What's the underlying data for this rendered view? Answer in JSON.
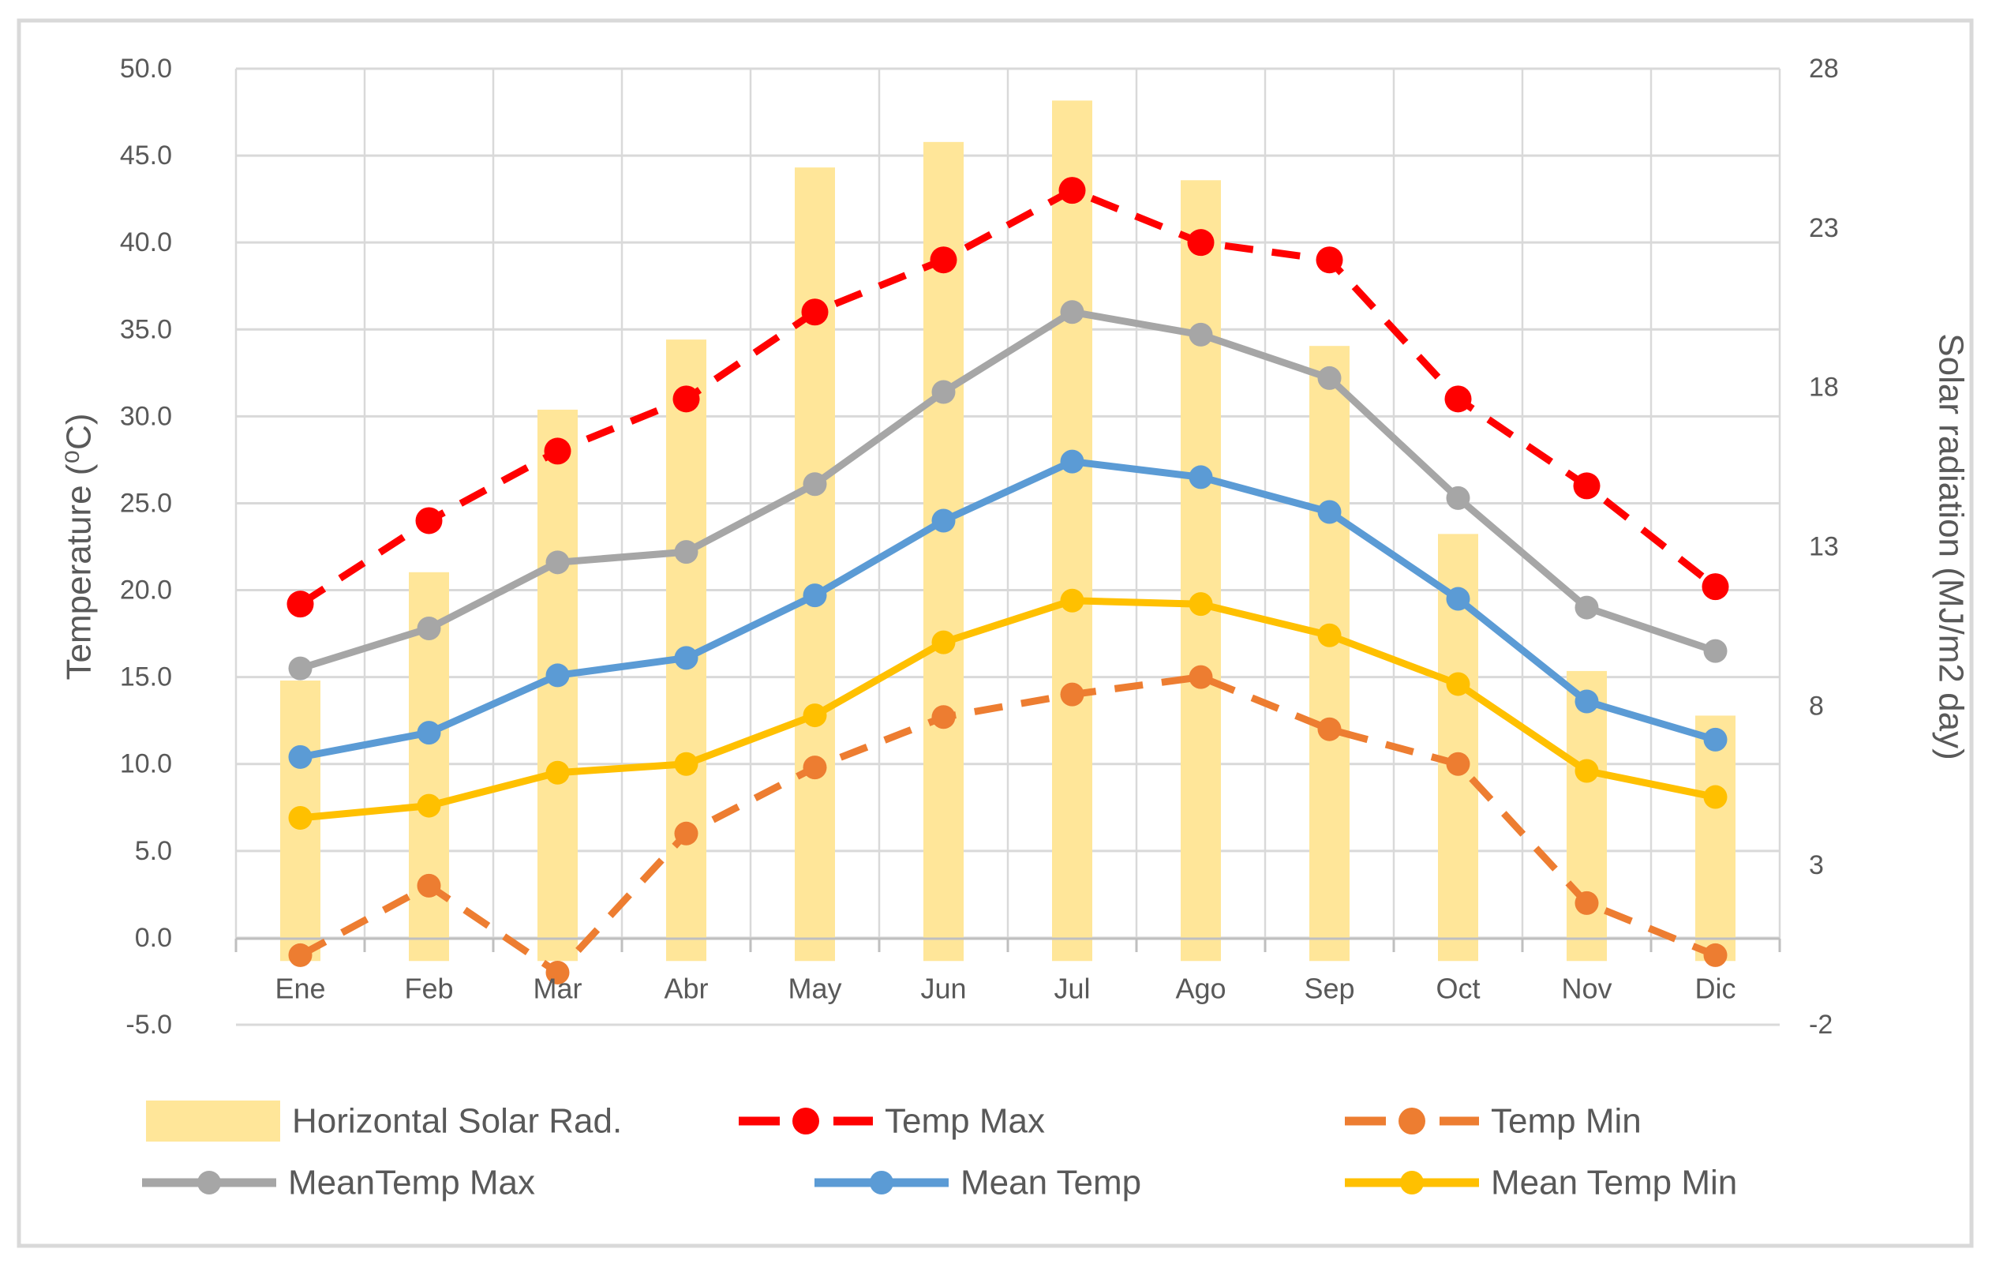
{
  "chart_data": {
    "type": "combo",
    "categories": [
      "Ene",
      "Feb",
      "Mar",
      "Abr",
      "May",
      "Jun",
      "Jul",
      "Ago",
      "Sep",
      "Oct",
      "Nov",
      "Dic"
    ],
    "series": [
      {
        "name": "Horizontal Solar Rad.",
        "type": "bar",
        "axis": "right",
        "color": "#FFE699",
        "values": [
          8.8,
          12.2,
          17.3,
          19.5,
          24.9,
          25.7,
          27.0,
          24.5,
          19.3,
          13.4,
          9.1,
          7.7
        ]
      },
      {
        "name": "Temp Max",
        "type": "line",
        "style": "dashed",
        "axis": "left",
        "color": "#FF0000",
        "values": [
          19.2,
          24.0,
          28.0,
          31.0,
          36.0,
          39.0,
          43.0,
          40.0,
          39.0,
          31.0,
          26.0,
          20.2
        ]
      },
      {
        "name": "Temp Min",
        "type": "line",
        "style": "dashed",
        "axis": "left",
        "color": "#ED7D31",
        "values": [
          -1.0,
          3.0,
          -2.0,
          6.0,
          9.8,
          12.7,
          14.0,
          15.0,
          12.0,
          10.0,
          2.0,
          -1.0
        ]
      },
      {
        "name": "MeanTemp Max",
        "type": "line",
        "style": "solid",
        "axis": "left",
        "color": "#A6A6A6",
        "values": [
          15.5,
          17.8,
          21.6,
          22.2,
          26.1,
          31.4,
          36.0,
          34.7,
          32.2,
          25.3,
          19.0,
          16.5
        ]
      },
      {
        "name": "Mean Temp",
        "type": "line",
        "style": "solid",
        "axis": "left",
        "color": "#5B9BD5",
        "values": [
          10.4,
          11.8,
          15.1,
          16.1,
          19.7,
          24.0,
          27.4,
          26.5,
          24.5,
          19.5,
          13.6,
          11.4
        ]
      },
      {
        "name": "Mean Temp Min",
        "type": "line",
        "style": "solid",
        "axis": "left",
        "color": "#FFC000",
        "values": [
          6.9,
          7.6,
          9.5,
          10.0,
          12.8,
          17.0,
          19.4,
          19.2,
          17.4,
          14.6,
          9.6,
          8.1
        ]
      }
    ],
    "left_axis": {
      "title": "Temperature (⁰C)",
      "min": -5,
      "max": 50,
      "tick_labels": [
        "50.0",
        "45.0",
        "40.0",
        "35.0",
        "30.0",
        "25.0",
        "20.0",
        "15.0",
        "10.0",
        "5.0",
        "0.0",
        "-5.0"
      ]
    },
    "right_axis": {
      "title": "Solar radiation (MJ/m2 day)",
      "min": -2,
      "max": 28,
      "tick_labels": [
        "28",
        "23",
        "18",
        "13",
        "8",
        "3",
        "-2"
      ]
    },
    "grid": true,
    "legend_position": "bottom"
  },
  "colors": {
    "gridline": "#D9D9D9",
    "axis_line": "#BFBFBF",
    "text": "#595959",
    "frame": "#D9D9D9",
    "background": "#FFFFFF"
  }
}
